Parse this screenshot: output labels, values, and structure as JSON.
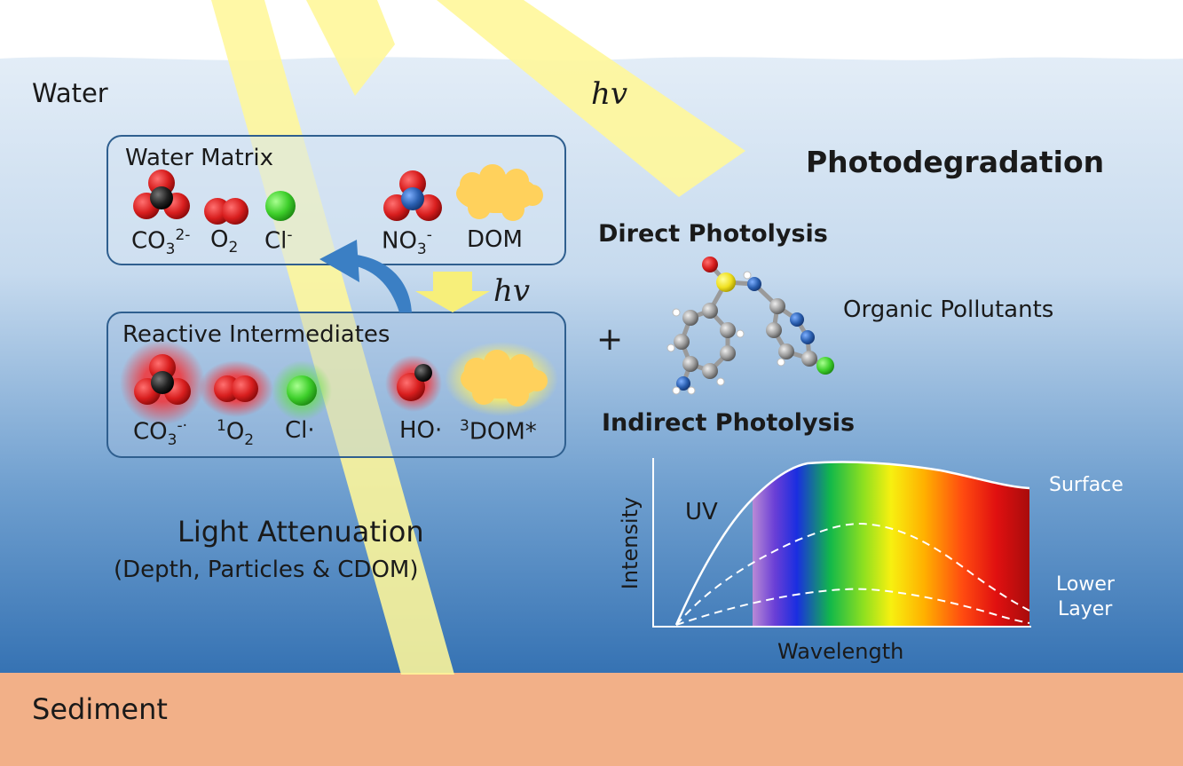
{
  "labels": {
    "water": "Water",
    "sediment": "Sediment",
    "hv_top": "hv",
    "hv_mid": "hv",
    "photodegradation": "Photodegradation",
    "direct_photolysis": "Direct Photolysis",
    "indirect_photolysis": "Indirect Photolysis",
    "organic_pollutants": "Organic Pollutants",
    "plus": "+",
    "light_attenuation": "Light Attenuation",
    "light_attenuation_sub": "(Depth, Particles & CDOM)"
  },
  "water_matrix": {
    "title": "Water Matrix",
    "species": [
      {
        "base": "CO",
        "sub": "3",
        "sup": "2-"
      },
      {
        "base": "O",
        "sub": "2",
        "sup": ""
      },
      {
        "base": "Cl",
        "sub": "",
        "sup": "-"
      },
      {
        "base": "NO",
        "sub": "3",
        "sup": "-"
      },
      {
        "base": "DOM",
        "sub": "",
        "sup": ""
      }
    ]
  },
  "reactive_intermediates": {
    "title": "Reactive Intermediates",
    "species": [
      {
        "pre": "",
        "base": "CO",
        "sub": "3",
        "sup": "-·"
      },
      {
        "pre": "1",
        "base": "O",
        "sub": "2",
        "sup": ""
      },
      {
        "pre": "",
        "base": "Cl·",
        "sub": "",
        "sup": ""
      },
      {
        "pre": "",
        "base": "HO·",
        "sub": "",
        "sup": ""
      },
      {
        "pre": "3",
        "base": "DOM*",
        "sub": "",
        "sup": ""
      }
    ]
  },
  "spectrum_chart": {
    "xlabel": "Wavelength",
    "ylabel": "Intensity",
    "uv_label": "UV",
    "surface_label": "Surface",
    "lower_label_line1": "Lower",
    "lower_label_line2": "Layer"
  },
  "colors": {
    "water_top": "#dce8f4",
    "water_bottom": "#3a78b8",
    "sediment": "#f2b088",
    "light_beam": "#fff79a",
    "box_stroke": "#2f5f8f",
    "arrow_blue": "#3b7fc4",
    "oxygen_red": "#d81e1e",
    "carbon_black": "#222222",
    "chlorine_green": "#3ecf2b",
    "nitrogen_blue": "#2a5fb0",
    "dom_yellow": "#ffd15c",
    "sulfur_yellow": "#f0e020"
  }
}
